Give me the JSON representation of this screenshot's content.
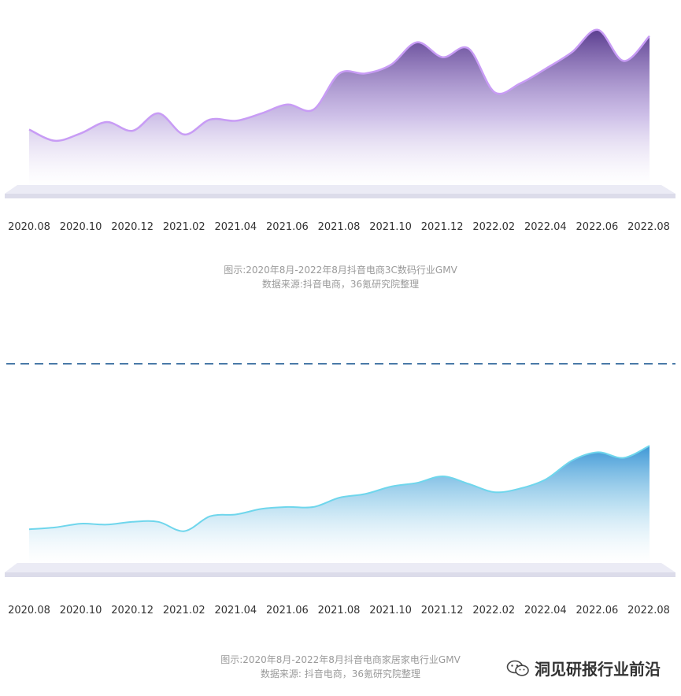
{
  "colors": {
    "chart1_line": "#c89cf5",
    "chart1_fill_top": "#5b3e8f",
    "chart1_fill_bottom": "#ffffff",
    "chart2_line": "#6fd6ec",
    "chart2_fill_top": "#3e97d6",
    "chart2_fill_bottom": "#ffffff",
    "base_plate": "#e6e6f2",
    "divider": "#4a7aa8"
  },
  "chart_data": [
    {
      "type": "area",
      "x_tick_labels": [
        "2020.08",
        "2020.10",
        "2020.12",
        "2021.02",
        "2021.04",
        "2021.06",
        "2021.08",
        "2021.10",
        "2021.12",
        "2022.02",
        "2022.04",
        "2022.06",
        "2022.08"
      ],
      "x": [
        "2020.08",
        "2020.09",
        "2020.10",
        "2020.11",
        "2020.12",
        "2021.01",
        "2021.02",
        "2021.03",
        "2021.04",
        "2021.05",
        "2021.06",
        "2021.07",
        "2021.08",
        "2021.09",
        "2021.10",
        "2021.11",
        "2021.12",
        "2022.01",
        "2022.02",
        "2022.03",
        "2022.04",
        "2022.05",
        "2022.06",
        "2022.07",
        "2022.08"
      ],
      "values": [
        30,
        21,
        27,
        36,
        29,
        43,
        26,
        38,
        37,
        43,
        50,
        46,
        75,
        75,
        82,
        100,
        88,
        95,
        60,
        67,
        79,
        92,
        110,
        85,
        105
      ],
      "ylim": [
        0,
        120
      ],
      "caption_line1": "图示:2020年8月-2022年8月抖音电商3C数码行业GMV",
      "caption_line2": "数据来源:抖音电商，36氪研究院整理"
    },
    {
      "type": "area",
      "x_tick_labels": [
        "2020.08",
        "2020.10",
        "2020.12",
        "2021.02",
        "2021.04",
        "2021.06",
        "2021.08",
        "2021.10",
        "2021.12",
        "2022.02",
        "2022.04",
        "2022.06",
        "2022.08"
      ],
      "x": [
        "2020.08",
        "2020.09",
        "2020.10",
        "2020.11",
        "2020.12",
        "2021.01",
        "2021.02",
        "2021.03",
        "2021.04",
        "2021.05",
        "2021.06",
        "2021.07",
        "2021.08",
        "2021.09",
        "2021.10",
        "2021.11",
        "2021.12",
        "2022.01",
        "2022.02",
        "2022.03",
        "2022.04",
        "2022.05",
        "2022.06",
        "2022.07",
        "2022.08"
      ],
      "values": [
        38,
        40,
        44,
        43,
        46,
        46,
        36,
        52,
        54,
        60,
        62,
        62,
        72,
        76,
        84,
        88,
        95,
        87,
        78,
        82,
        92,
        112,
        121,
        115,
        128
      ],
      "ylim": [
        0,
        140
      ],
      "caption_line1": "图示:2020年8月-2022年8月抖音电商家居家电行业GMV",
      "caption_line2": "数据来源: 抖音电商，36氪研究院整理"
    }
  ],
  "watermark": {
    "text": "洞见研报行业前沿",
    "icon": "wechat-icon"
  }
}
